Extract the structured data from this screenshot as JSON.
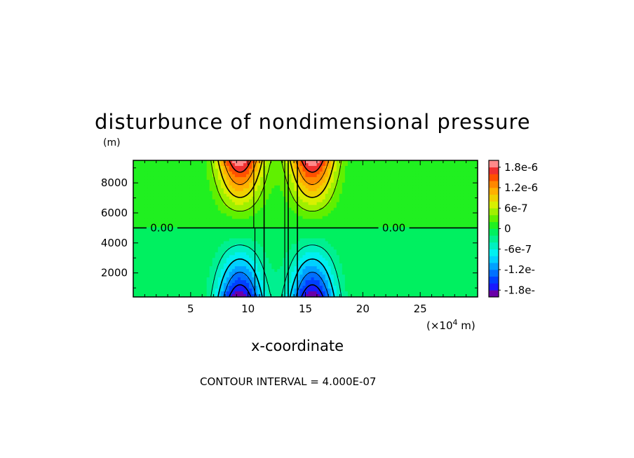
{
  "chart_data": {
    "type": "heatmap",
    "title": "disturbunce of nondimensional pressure",
    "ylabel": "(m)",
    "xlabel": "x-coordinate",
    "xunit_prefix": "(×10",
    "xunit_exp": "4",
    "xunit_suffix": " m)",
    "xlim": [
      0,
      30
    ],
    "ylim": [
      400,
      9500
    ],
    "xticks": [
      5,
      10,
      15,
      20,
      25
    ],
    "yticks": [
      2000,
      4000,
      6000,
      8000
    ],
    "contour_interval_text": "CONTOUR INTERVAL = 4.000E-07",
    "contour_interval": 4e-07,
    "zero_contour_labels": [
      {
        "text": "0.00",
        "x": 2.5,
        "y": 5000
      },
      {
        "text": "0.00",
        "x": 22.7,
        "y": 5000
      }
    ],
    "field": {
      "description_free": true,
      "dipoles": [
        {
          "x_center": 9.3,
          "x_halfwidth": 2.0,
          "max": 2e-06
        },
        {
          "x_center": 15.6,
          "x_halfwidth": 2.0,
          "max": 2e-06
        }
      ],
      "node_height": 5000,
      "top_height": 9500,
      "bottom_height": 400
    },
    "colorbar": {
      "labels": [
        "1.8e-6",
        "1.2e-6",
        "6e-7",
        "0",
        "-6e-7",
        "-1.2e-",
        "-1.8e-"
      ],
      "levels": [
        -2e-06,
        -1.8e-06,
        -1.6e-06,
        -1.4e-06,
        -1.2e-06,
        -1e-06,
        -8e-07,
        -6e-07,
        -4e-07,
        -2e-07,
        0,
        2e-07,
        4e-07,
        6e-07,
        8e-07,
        1e-06,
        1.2e-06,
        1.4e-06,
        1.6e-06,
        1.8e-06,
        2e-06
      ],
      "colors": [
        "#6a00a8",
        "#1a1aff",
        "#0040ff",
        "#0070ff",
        "#00a0ff",
        "#00d0ff",
        "#00f0f0",
        "#00f0c0",
        "#00f090",
        "#00f060",
        "#20f020",
        "#60f000",
        "#a0f000",
        "#d8f000",
        "#f0d000",
        "#ffb000",
        "#ff8800",
        "#ff5000",
        "#f03030",
        "#ff8a8a"
      ]
    }
  }
}
